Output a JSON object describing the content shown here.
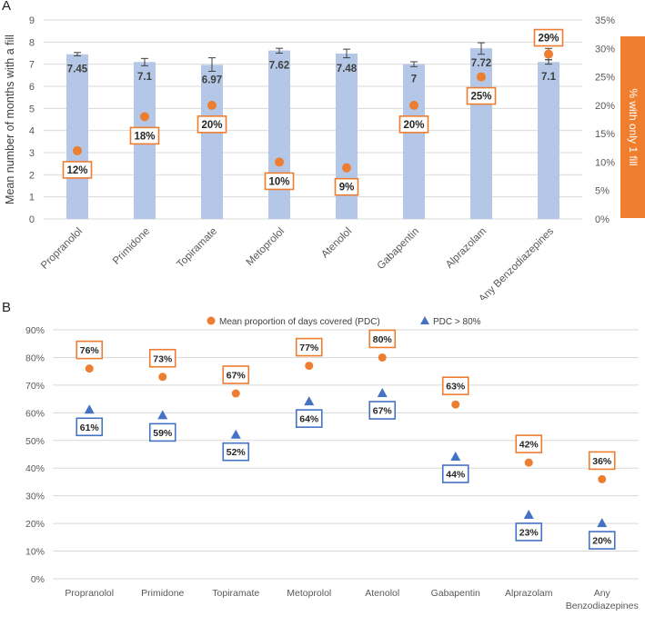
{
  "chart_data": [
    {
      "panel": "A",
      "type": "bar",
      "categories": [
        "Propranolol",
        "Primidone",
        "Topiramate",
        "Metoprolol",
        "Atenolol",
        "Gabapentin",
        "Alprazolam",
        "Any Benzodiazepines"
      ],
      "ylabel": "Mean number of months with a fill",
      "ylim": [
        0,
        9
      ],
      "yticks": [
        "0",
        "1",
        "2",
        "3",
        "4",
        "5",
        "6",
        "7",
        "8",
        "9"
      ],
      "y2label": "% with only 1 fill",
      "y2lim": [
        0,
        35
      ],
      "y2ticks": [
        "0%",
        "5%",
        "10%",
        "15%",
        "20%",
        "25%",
        "30%",
        "35%"
      ],
      "series": [
        {
          "name": "Mean number of months with a fill",
          "values": [
            7.45,
            7.1,
            6.97,
            7.62,
            7.48,
            7,
            7.72,
            7.1
          ],
          "labels": [
            "7.45",
            "7.1",
            "6.97",
            "7.62",
            "7.48",
            "7",
            "7.72",
            "7.1"
          ],
          "error_low": [
            7.38,
            6.93,
            6.68,
            7.5,
            7.29,
            6.89,
            7.45,
            7.0
          ],
          "error_high": [
            7.53,
            7.26,
            7.29,
            7.72,
            7.68,
            7.11,
            7.97,
            7.2
          ],
          "color": "#b4c7e7"
        },
        {
          "name": "% with only 1 fill",
          "axis": "right",
          "values": [
            12,
            18,
            20,
            10,
            9,
            20,
            25,
            29
          ],
          "labels": [
            "12%",
            "18%",
            "20%",
            "10%",
            "9%",
            "20%",
            "25%",
            "29%"
          ],
          "error_low": [
            12,
            18,
            20,
            10,
            9,
            20,
            25,
            28
          ],
          "error_high": [
            12,
            18,
            20,
            10,
            9,
            20,
            25,
            30
          ],
          "color": "#ed7d31"
        }
      ]
    },
    {
      "panel": "B",
      "type": "scatter",
      "categories": [
        "Propranolol",
        "Primidone",
        "Topiramate",
        "Metoprolol",
        "Atenolol",
        "Gabapentin",
        "Alprazolam",
        "Any Benzodiazepines"
      ],
      "category_lines": [
        [
          "Propranolol"
        ],
        [
          "Primidone"
        ],
        [
          "Topiramate"
        ],
        [
          "Metoprolol"
        ],
        [
          "Atenolol"
        ],
        [
          "Gabapentin"
        ],
        [
          "Alprazolam"
        ],
        [
          "Any",
          "Benzodiazepines"
        ]
      ],
      "ylim": [
        0,
        90
      ],
      "yticks": [
        "0%",
        "10%",
        "20%",
        "30%",
        "40%",
        "50%",
        "60%",
        "70%",
        "80%",
        "90%"
      ],
      "legend": "top-center",
      "series": [
        {
          "name": "Mean proportion of days covered (PDC)",
          "marker": "circle",
          "values": [
            76,
            73,
            67,
            77,
            80,
            63,
            42,
            36
          ],
          "labels": [
            "76%",
            "73%",
            "67%",
            "77%",
            "80%",
            "63%",
            "42%",
            "36%"
          ],
          "color": "#ed7d31"
        },
        {
          "name": "PDC > 80%",
          "marker": "triangle",
          "values": [
            61,
            59,
            52,
            64,
            67,
            44,
            23,
            20
          ],
          "labels": [
            "61%",
            "59%",
            "52%",
            "64%",
            "67%",
            "44%",
            "23%",
            "20%"
          ],
          "color": "#4472c4"
        }
      ]
    }
  ],
  "panels": {
    "a": "A",
    "b": "B"
  }
}
